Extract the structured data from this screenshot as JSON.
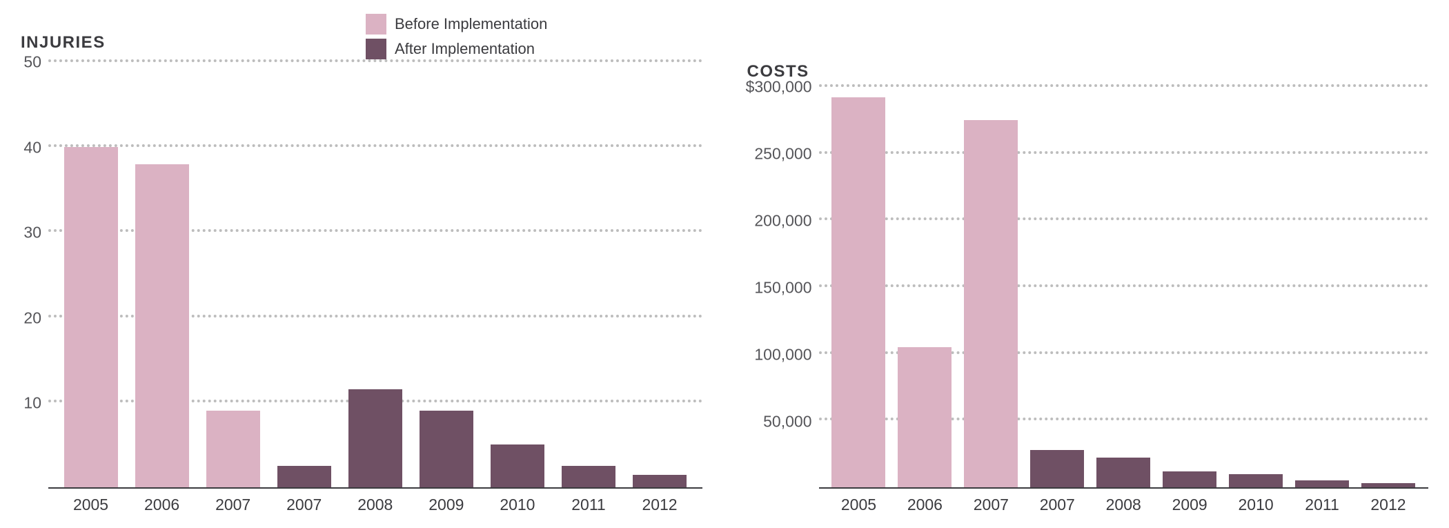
{
  "legend": {
    "items": [
      {
        "label": "Before Implementation",
        "color": "#dbb2c3"
      },
      {
        "label": "After Implementation",
        "color": "#6f5064"
      }
    ],
    "font_size": 22,
    "text_color": "#3b3b3f"
  },
  "colors": {
    "before": "#dbb2c3",
    "after": "#6f5064",
    "grid": "#bdbdbd",
    "axis": "#3b3b3f",
    "text": "#3b3b3f",
    "background": "#ffffff"
  },
  "typography": {
    "title_fontsize": 24,
    "title_weight": 700,
    "title_letterspacing": 1.5,
    "tick_fontsize": 23
  },
  "charts": [
    {
      "id": "injuries",
      "type": "bar",
      "title": "INJURIES",
      "ylim": [
        0,
        50
      ],
      "yticks": [
        50,
        40,
        30,
        20,
        10
      ],
      "ytick_labels": [
        "50",
        "40",
        "30",
        "20",
        "10"
      ],
      "categories": [
        "2005",
        "2006",
        "2007",
        "2007",
        "2008",
        "2009",
        "2010",
        "2011",
        "2012"
      ],
      "values": [
        40,
        38,
        9,
        2.5,
        11.5,
        9,
        5,
        2.5,
        1.5
      ],
      "series": [
        "before",
        "before",
        "before",
        "after",
        "after",
        "after",
        "after",
        "after",
        "after"
      ],
      "bar_width": 0.75,
      "gridlines_at": [
        50,
        40,
        30,
        20,
        10
      ]
    },
    {
      "id": "costs",
      "type": "bar",
      "title": "COSTS",
      "ylim": [
        0,
        300000
      ],
      "yticks": [
        300000,
        250000,
        200000,
        150000,
        100000,
        50000
      ],
      "ytick_labels": [
        "$300,000",
        "250,000",
        "200,000",
        "150,000",
        "100,000",
        "50,000"
      ],
      "categories": [
        "2005",
        "2006",
        "2007",
        "2007",
        "2008",
        "2009",
        "2010",
        "2011",
        "2012"
      ],
      "values": [
        292000,
        105000,
        275000,
        28000,
        22000,
        12000,
        10000,
        5000,
        3000
      ],
      "series": [
        "before",
        "before",
        "before",
        "after",
        "after",
        "after",
        "after",
        "after",
        "after"
      ],
      "bar_width": 0.75,
      "gridlines_at": [
        300000,
        250000,
        200000,
        150000,
        100000,
        50000
      ]
    }
  ]
}
